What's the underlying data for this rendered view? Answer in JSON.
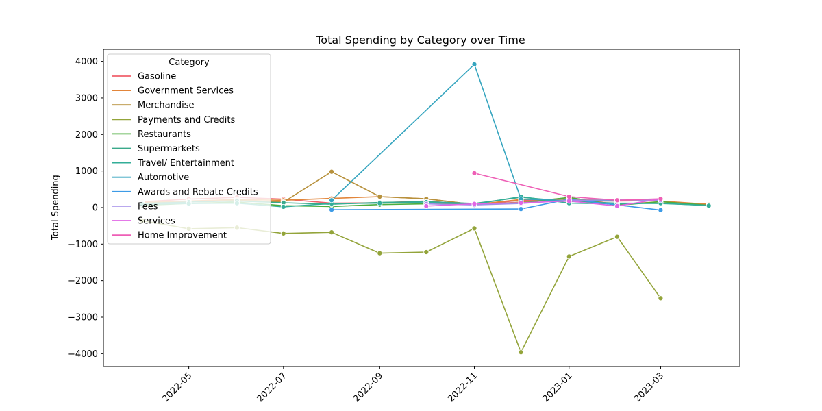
{
  "chart_data": {
    "type": "line",
    "title": "Total Spending by Category over Time",
    "xlabel": "",
    "ylabel": "Total Spending",
    "xlim": [
      "2022-03-07",
      "2023-04-21"
    ],
    "ylim": [
      -4350,
      4330
    ],
    "x_ticks": [
      "2022-05",
      "2022-07",
      "2022-09",
      "2022-11",
      "2023-01",
      "2023-03"
    ],
    "y_ticks": [
      -4000,
      -3000,
      -2000,
      -1000,
      0,
      1000,
      2000,
      3000,
      4000
    ],
    "grid": false,
    "legend": {
      "title": "Category",
      "placement": "top-left"
    },
    "series": [
      {
        "name": "Gasoline",
        "color": "#f0606c",
        "x": [
          "2022-04-01",
          "2022-05-01",
          "2022-06-01",
          "2022-07-01",
          "2022-08-01",
          "2022-09-01",
          "2022-10-01",
          "2022-11-01",
          "2022-12-01",
          "2023-01-01",
          "2023-02-01",
          "2023-03-01"
        ],
        "values": [
          160,
          230,
          280,
          230,
          120,
          130,
          180,
          70,
          200,
          170,
          180,
          190
        ]
      },
      {
        "name": "Government Services",
        "color": "#e2853a",
        "x": [
          "2022-04-01",
          "2022-05-01",
          "2022-06-01",
          "2022-07-01",
          "2022-08-01",
          "2022-09-01",
          "2022-10-01",
          "2022-11-01",
          "2022-12-01",
          "2023-01-01",
          "2023-02-01",
          "2023-03-01",
          "2023-04-01"
        ],
        "values": [
          140,
          180,
          220,
          200,
          250,
          300,
          240,
          80,
          220,
          230,
          200,
          180,
          90
        ]
      },
      {
        "name": "Merchandise",
        "color": "#b7913c",
        "x": [
          "2022-04-01",
          "2022-05-01",
          "2022-06-01",
          "2022-07-01",
          "2022-08-01",
          "2022-09-01",
          "2022-10-01",
          "2022-11-01",
          "2022-12-01",
          "2023-01-01",
          "2023-02-01",
          "2023-03-01",
          "2023-04-01"
        ],
        "values": [
          120,
          150,
          200,
          150,
          980,
          300,
          240,
          80,
          150,
          270,
          80,
          160,
          70
        ]
      },
      {
        "name": "Payments and Credits",
        "color": "#93a43a",
        "x": [
          "2022-04-01",
          "2022-05-01",
          "2022-06-01",
          "2022-07-01",
          "2022-08-01",
          "2022-09-01",
          "2022-10-01",
          "2022-11-01",
          "2022-12-01",
          "2023-01-01",
          "2023-02-01",
          "2023-03-01"
        ],
        "values": [
          -360,
          -580,
          -550,
          -710,
          -680,
          -1250,
          -1220,
          -570,
          -3960,
          -1340,
          -800,
          -2480
        ]
      },
      {
        "name": "Restaurants",
        "color": "#4bad3e",
        "x": [
          "2022-04-01",
          "2022-05-01",
          "2022-06-01",
          "2022-07-01",
          "2022-08-01",
          "2022-09-01",
          "2022-10-01",
          "2022-11-01",
          "2022-12-01",
          "2023-01-01",
          "2023-02-01",
          "2023-03-01",
          "2023-04-01"
        ],
        "values": [
          60,
          110,
          150,
          50,
          30,
          80,
          100,
          110,
          120,
          280,
          60,
          160,
          60
        ]
      },
      {
        "name": "Supermarkets",
        "color": "#39a98a",
        "x": [
          "2022-04-01",
          "2022-05-01",
          "2022-06-01",
          "2022-07-01",
          "2022-08-01",
          "2022-09-01",
          "2022-10-01",
          "2022-11-01",
          "2022-12-01",
          "2023-01-01",
          "2023-02-01",
          "2023-03-01",
          "2023-04-01"
        ],
        "values": [
          110,
          150,
          180,
          130,
          90,
          140,
          160,
          110,
          280,
          170,
          120,
          110,
          60
        ]
      },
      {
        "name": "Travel/ Entertainment",
        "color": "#33ae98",
        "x": [
          "2022-04-01",
          "2022-05-01",
          "2022-06-01",
          "2022-07-01",
          "2022-08-01",
          "2022-09-01",
          "2022-10-01",
          "2022-11-01",
          "2022-12-01",
          "2023-01-01",
          "2023-02-01",
          "2023-03-01",
          "2023-04-01"
        ],
        "values": [
          90,
          110,
          120,
          20,
          110,
          120,
          150,
          90,
          300,
          120,
          100,
          120,
          50
        ]
      },
      {
        "name": "Automotive",
        "color": "#36a5bf",
        "x": [
          "2022-08-01",
          "2022-11-01",
          "2022-12-01",
          "2023-01-01",
          "2023-02-01"
        ],
        "values": [
          200,
          3920,
          230,
          190,
          180
        ]
      },
      {
        "name": "Awards and Rebate Credits",
        "color": "#3d9be6",
        "x": [
          "2022-08-01",
          "2022-12-01",
          "2023-01-01",
          "2023-03-01"
        ],
        "values": [
          -60,
          -40,
          230,
          -70
        ]
      },
      {
        "name": "Fees",
        "color": "#a28ce8",
        "x": [
          "2022-10-01",
          "2022-11-01",
          "2022-12-01",
          "2023-01-01",
          "2023-02-01",
          "2023-03-01"
        ],
        "values": [
          100,
          70,
          110,
          200,
          210,
          200
        ]
      },
      {
        "name": "Services",
        "color": "#e066e4",
        "x": [
          "2022-10-01",
          "2022-11-01",
          "2022-12-01",
          "2023-01-01",
          "2023-02-01",
          "2023-03-01"
        ],
        "values": [
          40,
          100,
          130,
          180,
          40,
          240
        ]
      },
      {
        "name": "Home Improvement",
        "color": "#ee5fb6",
        "x": [
          "2022-11-01",
          "2023-01-01",
          "2023-02-01",
          "2023-03-01"
        ],
        "values": [
          940,
          300,
          200,
          240
        ]
      }
    ]
  }
}
